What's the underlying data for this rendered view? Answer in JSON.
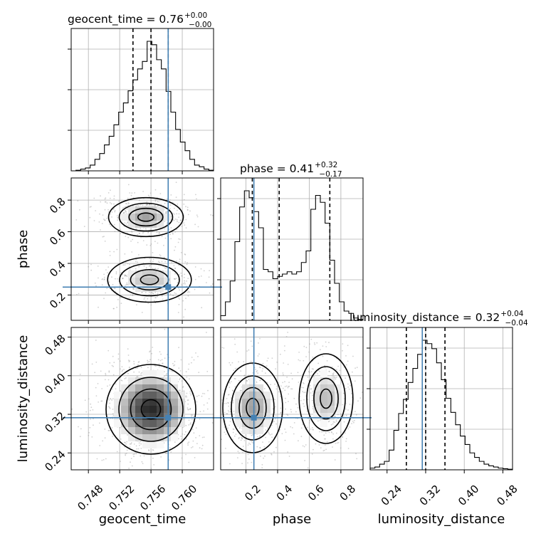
{
  "chart_data": {
    "type": "corner",
    "parameters": [
      "geocent_time",
      "phase",
      "luminosity_distance"
    ],
    "truth": {
      "geocent_time": 0.7582,
      "phase": 0.25,
      "luminosity_distance": 0.313
    },
    "colors": {
      "truth": "#4682b4",
      "hist": "#000000",
      "scatter": "#9a9a9a",
      "grid": "#b0b0b0"
    },
    "titles": [
      {
        "param": "geocent_time",
        "text": "geocent_time = 0.76",
        "plus": "+0.00",
        "minus": "−0.00"
      },
      {
        "param": "phase",
        "text": "phase = 0.41",
        "plus": "+0.32",
        "minus": "−0.17"
      },
      {
        "param": "luminosity_distance",
        "text": "luminosity_distance = 0.32",
        "plus": "+0.04",
        "minus": "−0.04"
      }
    ],
    "quantiles": {
      "geocent_time": [
        0.7537,
        0.756,
        0.7582
      ],
      "phase": [
        0.24,
        0.41,
        0.73
      ],
      "luminosity_distance": [
        0.28,
        0.32,
        0.36
      ]
    },
    "ranges": {
      "geocent_time": [
        0.7458,
        0.764
      ],
      "phase": [
        0.04,
        0.94
      ],
      "luminosity_distance": [
        0.205,
        0.5
      ]
    },
    "ticks": {
      "geocent_time": [
        "0.748",
        "0.752",
        "0.756",
        "0.760"
      ],
      "phase": [
        "0.2",
        "0.4",
        "0.6",
        "0.8"
      ],
      "luminosity_distance": [
        "0.24",
        "0.32",
        "0.40",
        "0.48"
      ]
    },
    "histograms": {
      "geocent_time": [
        0,
        1,
        3,
        5,
        10,
        20,
        30,
        45,
        60,
        80,
        102,
        118,
        139,
        158,
        177,
        190,
        225,
        219,
        193,
        177,
        138,
        102,
        72,
        50,
        35,
        20,
        10,
        7,
        3,
        1
      ],
      "phase": [
        10,
        40,
        85,
        170,
        245,
        280,
        265,
        235,
        200,
        110,
        105,
        90,
        95,
        100,
        105,
        100,
        105,
        125,
        150,
        240,
        270,
        255,
        210,
        130,
        80,
        40,
        20,
        15,
        5,
        2
      ],
      "luminosity_distance": [
        3,
        5,
        10,
        15,
        35,
        70,
        100,
        125,
        155,
        180,
        205,
        230,
        224,
        215,
        190,
        160,
        127,
        102,
        80,
        60,
        45,
        30,
        22,
        15,
        10,
        7,
        5,
        3,
        2,
        1
      ]
    },
    "grid": true
  }
}
